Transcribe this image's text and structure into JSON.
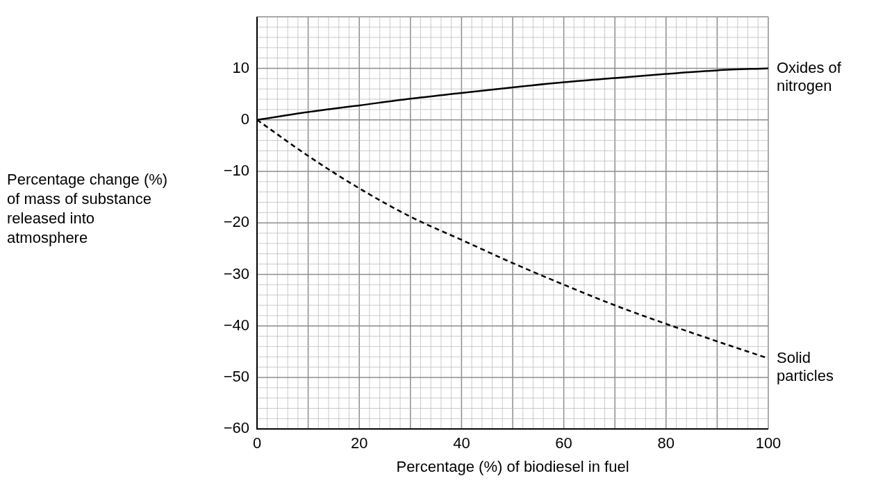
{
  "chart_data": {
    "type": "line",
    "xlabel": "Percentage (%) of biodiesel in fuel",
    "ylabel": "Percentage change (%) of mass of substance released into atmosphere",
    "x": [
      0,
      10,
      20,
      30,
      40,
      50,
      60,
      70,
      80,
      90,
      100
    ],
    "series": [
      {
        "name": "Oxides of nitrogen",
        "color": "#000000",
        "line_style": "solid",
        "values": [
          0,
          1.5,
          2.8,
          4.1,
          5.2,
          6.3,
          7.3,
          8.1,
          8.9,
          9.6,
          10
        ]
      },
      {
        "name": "Solid particles",
        "color": "#000000",
        "line_style": "dashed",
        "values": [
          0,
          -7,
          -13.3,
          -18.8,
          -23.3,
          -27.8,
          -32,
          -36,
          -39.6,
          -43,
          -46.3
        ]
      }
    ],
    "xlim": [
      0,
      100
    ],
    "xticks": [
      0,
      20,
      40,
      60,
      80,
      100
    ],
    "ylim": [
      -60,
      20
    ],
    "yticks": [
      {
        "value": -60,
        "label": "−60"
      },
      {
        "value": -50,
        "label": "−50"
      },
      {
        "value": -40,
        "label": "−40"
      },
      {
        "value": -30,
        "label": "−30"
      },
      {
        "value": -20,
        "label": "−20"
      },
      {
        "value": -10,
        "label": "−10"
      },
      0,
      10
    ],
    "grid": true,
    "legend": false,
    "marker": "none"
  }
}
